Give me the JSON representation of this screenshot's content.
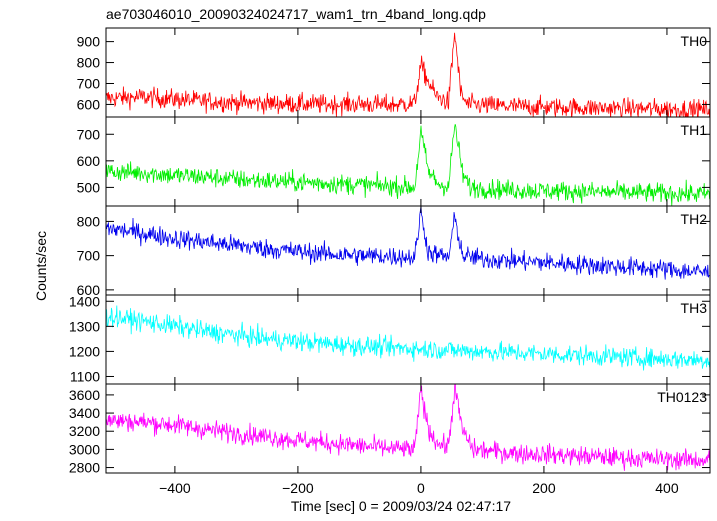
{
  "chart_data": {
    "type": "line",
    "title": "ae703046010_20090324024717_wam1_trn_4band_long.qdp",
    "xlabel": "Time [sec] 0 = 2009/03/24 02:47:17",
    "ylabel": "Counts/sec",
    "xlim": [
      -512,
      470
    ],
    "x_ticks": [
      -400,
      -200,
      0,
      200,
      400
    ],
    "x_tick_labels": [
      "−400",
      "−200",
      "0",
      "200",
      "400"
    ],
    "grid": false,
    "panels": [
      {
        "name": "TH0",
        "color": "#ff0000",
        "ylim": [
          540,
          965
        ],
        "y_ticks": [
          600,
          700,
          800,
          900
        ],
        "points": [
          [
            -510,
            630
          ],
          [
            -450,
            635
          ],
          [
            -400,
            625
          ],
          [
            -350,
            615
          ],
          [
            -300,
            610
          ],
          [
            -250,
            605
          ],
          [
            -200,
            603
          ],
          [
            -150,
            600
          ],
          [
            -100,
            602
          ],
          [
            -50,
            598
          ],
          [
            -10,
            605
          ],
          [
            0,
            790
          ],
          [
            10,
            720
          ],
          [
            25,
            640
          ],
          [
            45,
            610
          ],
          [
            55,
            945
          ],
          [
            65,
            650
          ],
          [
            75,
            600
          ],
          [
            150,
            590
          ],
          [
            250,
            585
          ],
          [
            350,
            580
          ],
          [
            470,
            575
          ]
        ]
      },
      {
        "name": "TH1",
        "color": "#00ee00",
        "ylim": [
          430,
          765
        ],
        "y_ticks": [
          500,
          600,
          700
        ],
        "points": [
          [
            -510,
            560
          ],
          [
            -450,
            555
          ],
          [
            -400,
            545
          ],
          [
            -350,
            540
          ],
          [
            -300,
            530
          ],
          [
            -250,
            525
          ],
          [
            -200,
            520
          ],
          [
            -150,
            515
          ],
          [
            -100,
            510
          ],
          [
            -50,
            505
          ],
          [
            -10,
            500
          ],
          [
            0,
            710
          ],
          [
            12,
            560
          ],
          [
            30,
            510
          ],
          [
            45,
            505
          ],
          [
            55,
            740
          ],
          [
            68,
            550
          ],
          [
            80,
            500
          ],
          [
            150,
            490
          ],
          [
            250,
            485
          ],
          [
            350,
            480
          ],
          [
            470,
            475
          ]
        ]
      },
      {
        "name": "TH2",
        "color": "#0000ee",
        "ylim": [
          585,
          845
        ],
        "y_ticks": [
          600,
          700,
          800
        ],
        "points": [
          [
            -510,
            780
          ],
          [
            -450,
            765
          ],
          [
            -400,
            750
          ],
          [
            -350,
            740
          ],
          [
            -300,
            730
          ],
          [
            -250,
            720
          ],
          [
            -200,
            712
          ],
          [
            -150,
            705
          ],
          [
            -100,
            700
          ],
          [
            -50,
            698
          ],
          [
            -10,
            695
          ],
          [
            0,
            830
          ],
          [
            12,
            710
          ],
          [
            30,
            700
          ],
          [
            45,
            695
          ],
          [
            55,
            810
          ],
          [
            68,
            700
          ],
          [
            100,
            690
          ],
          [
            200,
            680
          ],
          [
            300,
            670
          ],
          [
            400,
            660
          ],
          [
            470,
            650
          ]
        ]
      },
      {
        "name": "TH3",
        "color": "#00ffff",
        "ylim": [
          1070,
          1425
        ],
        "y_ticks": [
          1100,
          1200,
          1300,
          1400
        ],
        "points": [
          [
            -510,
            1340
          ],
          [
            -450,
            1320
          ],
          [
            -400,
            1300
          ],
          [
            -350,
            1280
          ],
          [
            -300,
            1265
          ],
          [
            -250,
            1250
          ],
          [
            -200,
            1240
          ],
          [
            -150,
            1230
          ],
          [
            -100,
            1222
          ],
          [
            -50,
            1215
          ],
          [
            0,
            1210
          ],
          [
            50,
            1205
          ],
          [
            100,
            1200
          ],
          [
            200,
            1190
          ],
          [
            300,
            1180
          ],
          [
            400,
            1170
          ],
          [
            470,
            1165
          ]
        ]
      },
      {
        "name": "TH0123",
        "color": "#ff00ff",
        "ylim": [
          2740,
          3720
        ],
        "y_ticks": [
          2800,
          3000,
          3200,
          3400,
          3600
        ],
        "points": [
          [
            -510,
            3320
          ],
          [
            -450,
            3300
          ],
          [
            -400,
            3270
          ],
          [
            -350,
            3220
          ],
          [
            -300,
            3180
          ],
          [
            -250,
            3140
          ],
          [
            -200,
            3100
          ],
          [
            -150,
            3070
          ],
          [
            -100,
            3040
          ],
          [
            -50,
            3010
          ],
          [
            -10,
            3000
          ],
          [
            0,
            3660
          ],
          [
            12,
            3220
          ],
          [
            30,
            3050
          ],
          [
            45,
            3040
          ],
          [
            55,
            3680
          ],
          [
            68,
            3200
          ],
          [
            85,
            3000
          ],
          [
            150,
            2960
          ],
          [
            250,
            2930
          ],
          [
            350,
            2900
          ],
          [
            470,
            2880
          ]
        ]
      }
    ]
  }
}
